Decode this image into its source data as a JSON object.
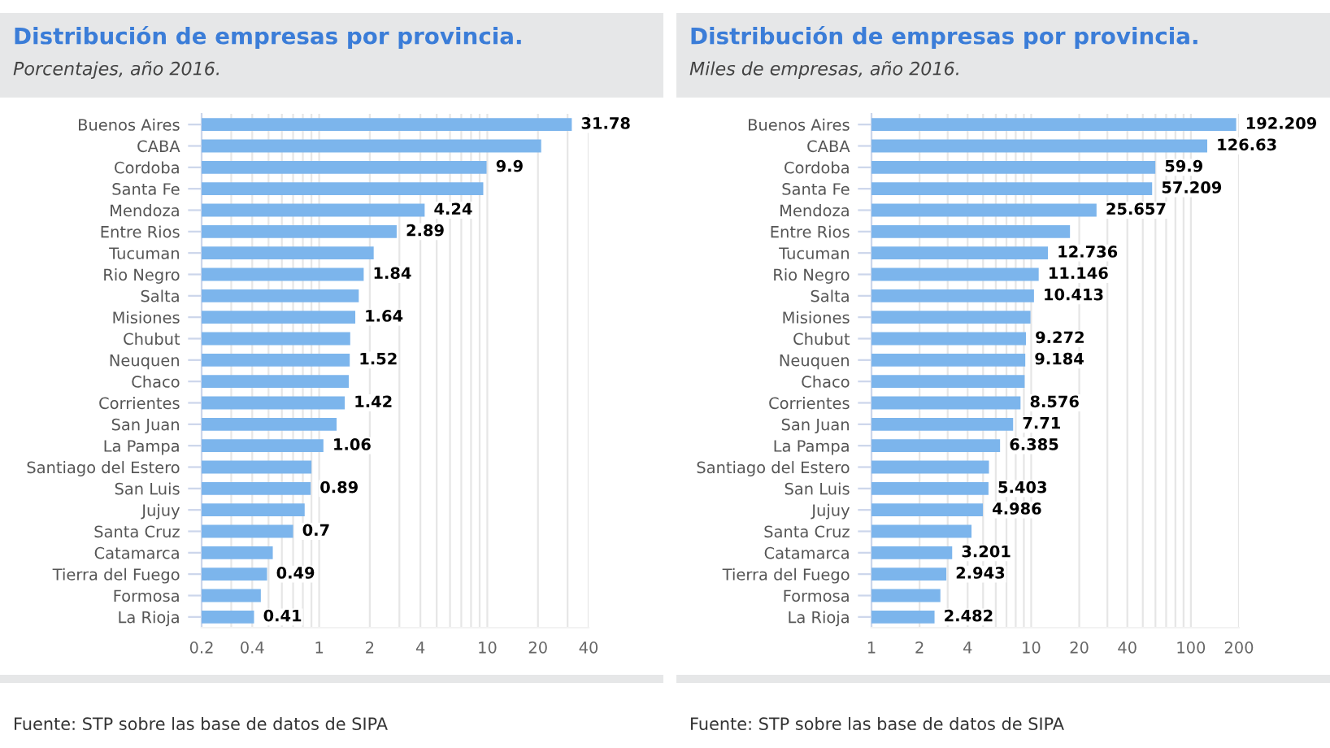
{
  "chart_data": [
    {
      "type": "bar",
      "orientation": "horizontal",
      "title": "Distribución de empresas por provincia.",
      "subtitle": "Porcentajes, año 2016.",
      "categories": [
        "Buenos Aires",
        "CABA",
        "Cordoba",
        "Santa Fe",
        "Mendoza",
        "Entre Rios",
        "Tucuman",
        "Rio Negro",
        "Salta",
        "Misiones",
        "Chubut",
        "Neuquen",
        "Chaco",
        "Corrientes",
        "San Juan",
        "La Pampa",
        "Santiago del Estero",
        "San Luis",
        "Jujuy",
        "Santa Cruz",
        "Catamarca",
        "Tierra del Fuego",
        "Formosa",
        "La Rioja"
      ],
      "values": [
        31.78,
        20.9,
        9.9,
        9.46,
        4.24,
        2.89,
        2.11,
        1.84,
        1.72,
        1.64,
        1.53,
        1.52,
        1.5,
        1.42,
        1.27,
        1.06,
        0.9,
        0.89,
        0.82,
        0.7,
        0.53,
        0.49,
        0.45,
        0.41
      ],
      "value_labels": [
        "31.78",
        null,
        "9.9",
        null,
        "4.24",
        "2.89",
        null,
        "1.84",
        null,
        "1.64",
        null,
        "1.52",
        null,
        "1.42",
        null,
        "1.06",
        null,
        "0.89",
        null,
        "0.7",
        null,
        "0.49",
        null,
        "0.41"
      ],
      "color": "#7cb5ec",
      "log": "x",
      "xlim": [
        0.2,
        40
      ],
      "xticks": [
        0.2,
        0.4,
        1,
        2,
        4,
        10,
        20,
        40
      ],
      "grid": "x",
      "annotations": [
        "Fuente: STP sobre las base de datos de SIPA"
      ]
    },
    {
      "type": "bar",
      "orientation": "horizontal",
      "title": "Distribución de empresas por provincia.",
      "subtitle": "Miles de empresas, año 2016.",
      "categories": [
        "Buenos Aires",
        "CABA",
        "Cordoba",
        "Santa Fe",
        "Mendoza",
        "Entre Rios",
        "Tucuman",
        "Rio Negro",
        "Salta",
        "Misiones",
        "Chubut",
        "Neuquen",
        "Chaco",
        "Corrientes",
        "San Juan",
        "La Pampa",
        "Santiago del Estero",
        "San Luis",
        "Jujuy",
        "Santa Cruz",
        "Catamarca",
        "Tierra del Fuego",
        "Formosa",
        "La Rioja"
      ],
      "values": [
        192.209,
        126.63,
        59.9,
        57.209,
        25.657,
        17.5,
        12.736,
        11.146,
        10.413,
        9.9,
        9.272,
        9.184,
        9.1,
        8.576,
        7.71,
        6.385,
        5.44,
        5.403,
        4.986,
        4.23,
        3.201,
        2.943,
        2.7,
        2.482
      ],
      "value_labels": [
        "192.209",
        "126.63",
        "59.9",
        "57.209",
        "25.657",
        null,
        "12.736",
        "11.146",
        "10.413",
        null,
        "9.272",
        "9.184",
        null,
        "8.576",
        "7.71",
        "6.385",
        null,
        "5.403",
        "4.986",
        null,
        "3.201",
        "2.943",
        null,
        "2.482"
      ],
      "color": "#7cb5ec",
      "log": "x",
      "xlim": [
        1,
        200
      ],
      "xticks": [
        1,
        2,
        4,
        10,
        20,
        40,
        100,
        200
      ],
      "grid": "x",
      "annotations": [
        "Fuente: STP sobre las base de datos de SIPA"
      ]
    }
  ]
}
